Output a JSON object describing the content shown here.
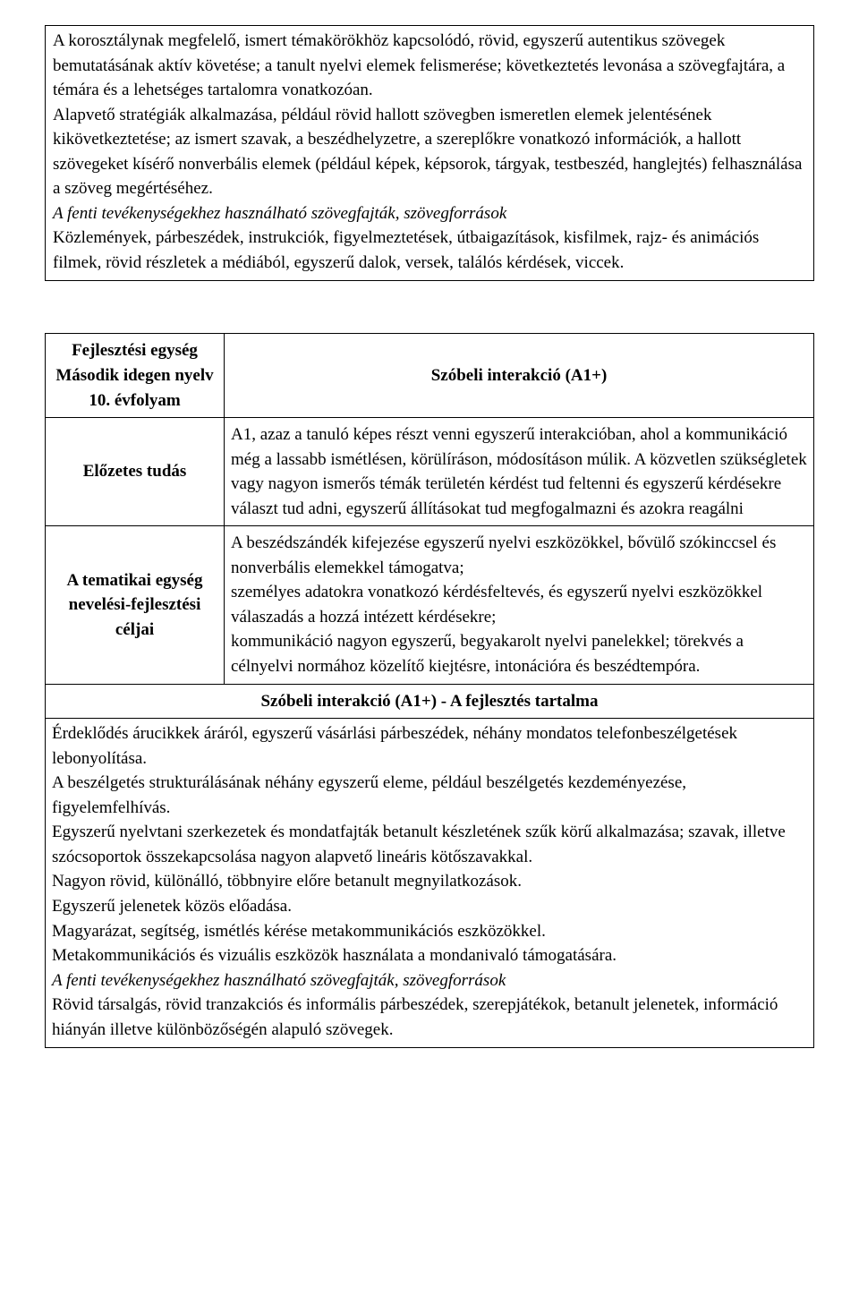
{
  "box1": {
    "p1": "A korosztálynak megfelelő, ismert témakörökhöz kapcsolódó, rövid, egyszerű autentikus szövegek bemutatásának aktív követése; a tanult nyelvi elemek felismerése; következtetés levonása a szövegfajtára, a témára és a lehetséges tartalomra vonatkozóan.",
    "p2": "Alapvető stratégiák alkalmazása, például rövid hallott szövegben ismeretlen elemek jelentésének kikövetkeztetése; az ismert szavak, a beszédhelyzetre, a szereplőkre vonatkozó információk, a hallott szövegeket kísérő nonverbális elemek (például képek, képsorok, tárgyak, testbeszéd, hanglejtés) felhasználása a szöveg megértéséhez.",
    "p3_italic": "A fenti tevékenységekhez használható szövegfajták, szövegforrások",
    "p4": "Közlemények, párbeszédek, instrukciók, figyelmeztetések, útbaigazítások, kisfilmek, rajz- és animációs filmek, rövid részletek a médiából, egyszerű dalok, versek, találós kérdések, viccek."
  },
  "table": {
    "header_left": "Fejlesztési egység\nMásodik idegen nyelv\n10. évfolyam",
    "header_right": "Szóbeli interakció (A1+)",
    "row1_left": "Előzetes tudás",
    "row1_right": "A1, azaz a tanuló képes részt venni egyszerű interakcióban, ahol a kommunikáció még a lassabb ismétlésen, körülíráson, módosításon múlik. A közvetlen szükségletek vagy nagyon ismerős témák területén kérdést tud feltenni és egyszerű kérdésekre választ tud adni, egyszerű állításokat tud megfogalmazni és azokra reagálni",
    "row2_left": "A tematikai egység nevelési-fejlesztési céljai",
    "row2_right": "A beszédszándék kifejezése egyszerű nyelvi eszközökkel, bővülő szókinccsel és nonverbális elemekkel támogatva;\nszemélyes adatokra vonatkozó kérdésfeltevés, és egyszerű nyelvi eszközökkel válaszadás a hozzá intézett kérdésekre;\nkommunikáció nagyon egyszerű, begyakarolt nyelvi panelekkel; törekvés a célnyelvi normához közelítő kiejtésre, intonációra és beszédtempóra.",
    "subheader": "Szóbeli interakció (A1+) - A fejlesztés tartalma",
    "content": {
      "p1": "Érdeklődés árucikkek áráról, egyszerű vásárlási párbeszédek, néhány mondatos telefonbeszélgetések lebonyolítása.",
      "p2": "A beszélgetés strukturálásának néhány egyszerű eleme, például beszélgetés kezdeményezése, figyelemfelhívás.",
      "p3": "Egyszerű nyelvtani szerkezetek és mondatfajták betanult készletének szűk körű alkalmazása; szavak, illetve szócsoportok összekapcsolása nagyon alapvető lineáris kötőszavakkal.",
      "p4": "Nagyon rövid, különálló, többnyire előre betanult megnyilatkozások.",
      "p5": "Egyszerű jelenetek közös előadása.",
      "p6": "Magyarázat, segítség, ismétlés kérése metakommunikációs eszközökkel.",
      "p7": "Metakommunikációs és vizuális eszközök használata a mondanivaló támogatására.",
      "p8_italic": "A fenti tevékenységekhez használható szövegfajták, szövegforrások",
      "p9": "Rövid társalgás, rövid tranzakciós és informális párbeszédek, szerepjátékok, betanult jelenetek, információ hiányán illetve különbözőségén alapuló szövegek."
    }
  }
}
